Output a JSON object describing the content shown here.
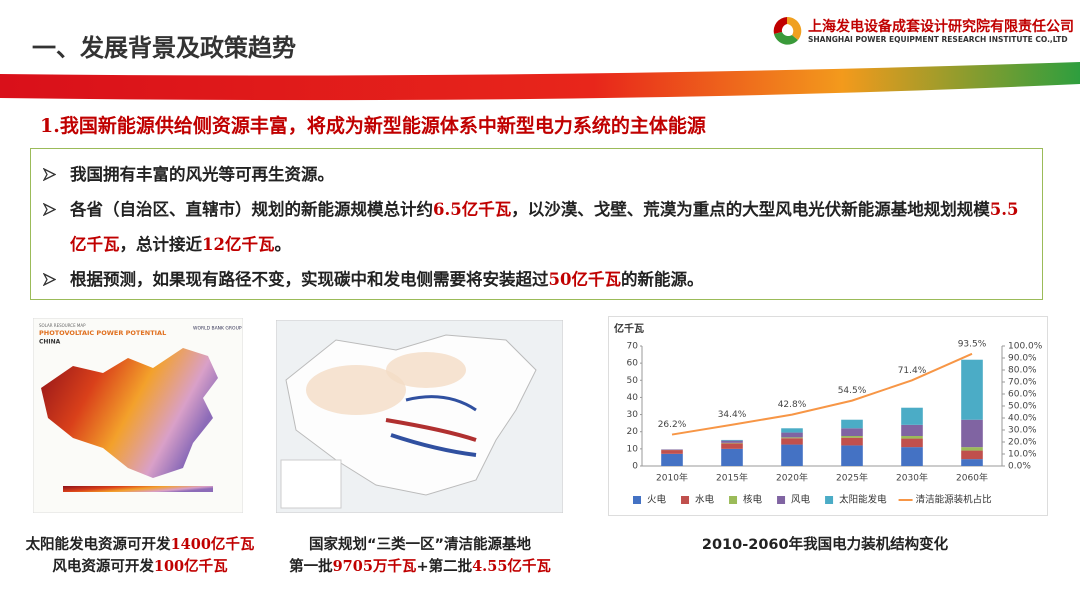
{
  "header": {
    "title": "一、发展背景及政策趋势",
    "company_cn": "上海发电设备成套设计研究院有限责任公司",
    "company_en": "SHANGHAI POWER EQUIPMENT RESEARCH INSTITUTE CO.,LTD"
  },
  "headline": "1.我国新能源供给侧资源丰富，将成为新型能源体系中新型电力系统的主体能源",
  "bullets": [
    {
      "parts": [
        "我国拥有丰富的风光等可再生资源。"
      ]
    },
    {
      "parts": [
        "各省（自治区、直辖市）规划的新能源规模总计约",
        "6.5亿千瓦",
        "，以沙漠、戈壁、荒漠为重点的大型风电光伏新能源基地规划规模",
        "5.5亿千瓦",
        "，总计接近",
        "12亿千瓦",
        "。"
      ]
    },
    {
      "parts": [
        "根据预测，如果现有路径不变，实现碳中和发电侧需要将安装超过",
        "50亿千瓦",
        "的新能源。"
      ]
    }
  ],
  "solar_map": {
    "kicker": "SOLAR RESOURCE MAP",
    "title": "PHOTOVOLTAIC POWER POTENTIAL",
    "country": "CHINA",
    "brand": "WORLD BANK GROUP"
  },
  "captions": [
    {
      "lines": [
        {
          "parts": [
            "太阳能发电资源可开发",
            "1400亿千瓦"
          ]
        },
        {
          "parts": [
            "风电资源可开发",
            "100亿千瓦"
          ]
        }
      ]
    },
    {
      "lines": [
        {
          "parts": [
            "国家规划“三类一区”清洁能源基地"
          ]
        },
        {
          "parts": [
            "第一批",
            "9705万千瓦",
            "+第二批",
            "4.55亿千瓦"
          ]
        }
      ]
    },
    {
      "lines": [
        {
          "parts": [
            "2010-2060年我国电力装机结构变化"
          ]
        }
      ]
    }
  ],
  "chart_data": {
    "type": "bar",
    "stacked": true,
    "y_label": "亿千瓦",
    "categories": [
      "2010年",
      "2015年",
      "2020年",
      "2025年",
      "2030年",
      "2060年"
    ],
    "series": [
      {
        "name": "火电",
        "color": "#4472c4",
        "values": [
          7.1,
          10,
          12.5,
          12,
          11,
          4
        ]
      },
      {
        "name": "水电",
        "color": "#c0504d",
        "values": [
          2.2,
          3.2,
          3.7,
          4.5,
          5,
          5
        ]
      },
      {
        "name": "核电",
        "color": "#9bbb59",
        "values": [
          0.1,
          0.3,
          0.5,
          1,
          1.5,
          2
        ]
      },
      {
        "name": "风电",
        "color": "#8064a2",
        "values": [
          0.3,
          1.3,
          2.8,
          4.5,
          6.5,
          16
        ]
      },
      {
        "name": "太阳能发电",
        "color": "#4bacc6",
        "values": [
          0,
          0.4,
          2.5,
          5,
          10,
          35
        ]
      },
      {
        "name": "清洁能源装机占比",
        "color": "#f79646",
        "type": "line",
        "axis": "y2",
        "values": [
          26.2,
          34.4,
          42.8,
          54.5,
          71.4,
          93.5
        ],
        "value_labels": [
          "26.2%",
          "34.4%",
          "42.8%",
          "54.5%",
          "71.4%",
          "93.5%"
        ]
      }
    ],
    "ylim": [
      0,
      70
    ],
    "yticks": [
      0,
      10,
      20,
      30,
      40,
      50,
      60,
      70
    ],
    "y2lim": [
      0,
      100
    ],
    "y2ticks": [
      {
        "value": 0,
        "label": "0.0%"
      },
      {
        "value": 10,
        "label": "10.0%"
      },
      {
        "value": 20,
        "label": "20.0%"
      },
      {
        "value": 30,
        "label": "30.0%"
      },
      {
        "value": 40,
        "label": "40.0%"
      },
      {
        "value": 50,
        "label": "50.0%"
      },
      {
        "value": 60,
        "label": "60.0%"
      },
      {
        "value": 70,
        "label": "70.0%"
      },
      {
        "value": 80,
        "label": "80.0%"
      },
      {
        "value": 90,
        "label": "90.0%"
      },
      {
        "value": 100,
        "label": "100.0%"
      }
    ],
    "legend": "bottom"
  }
}
